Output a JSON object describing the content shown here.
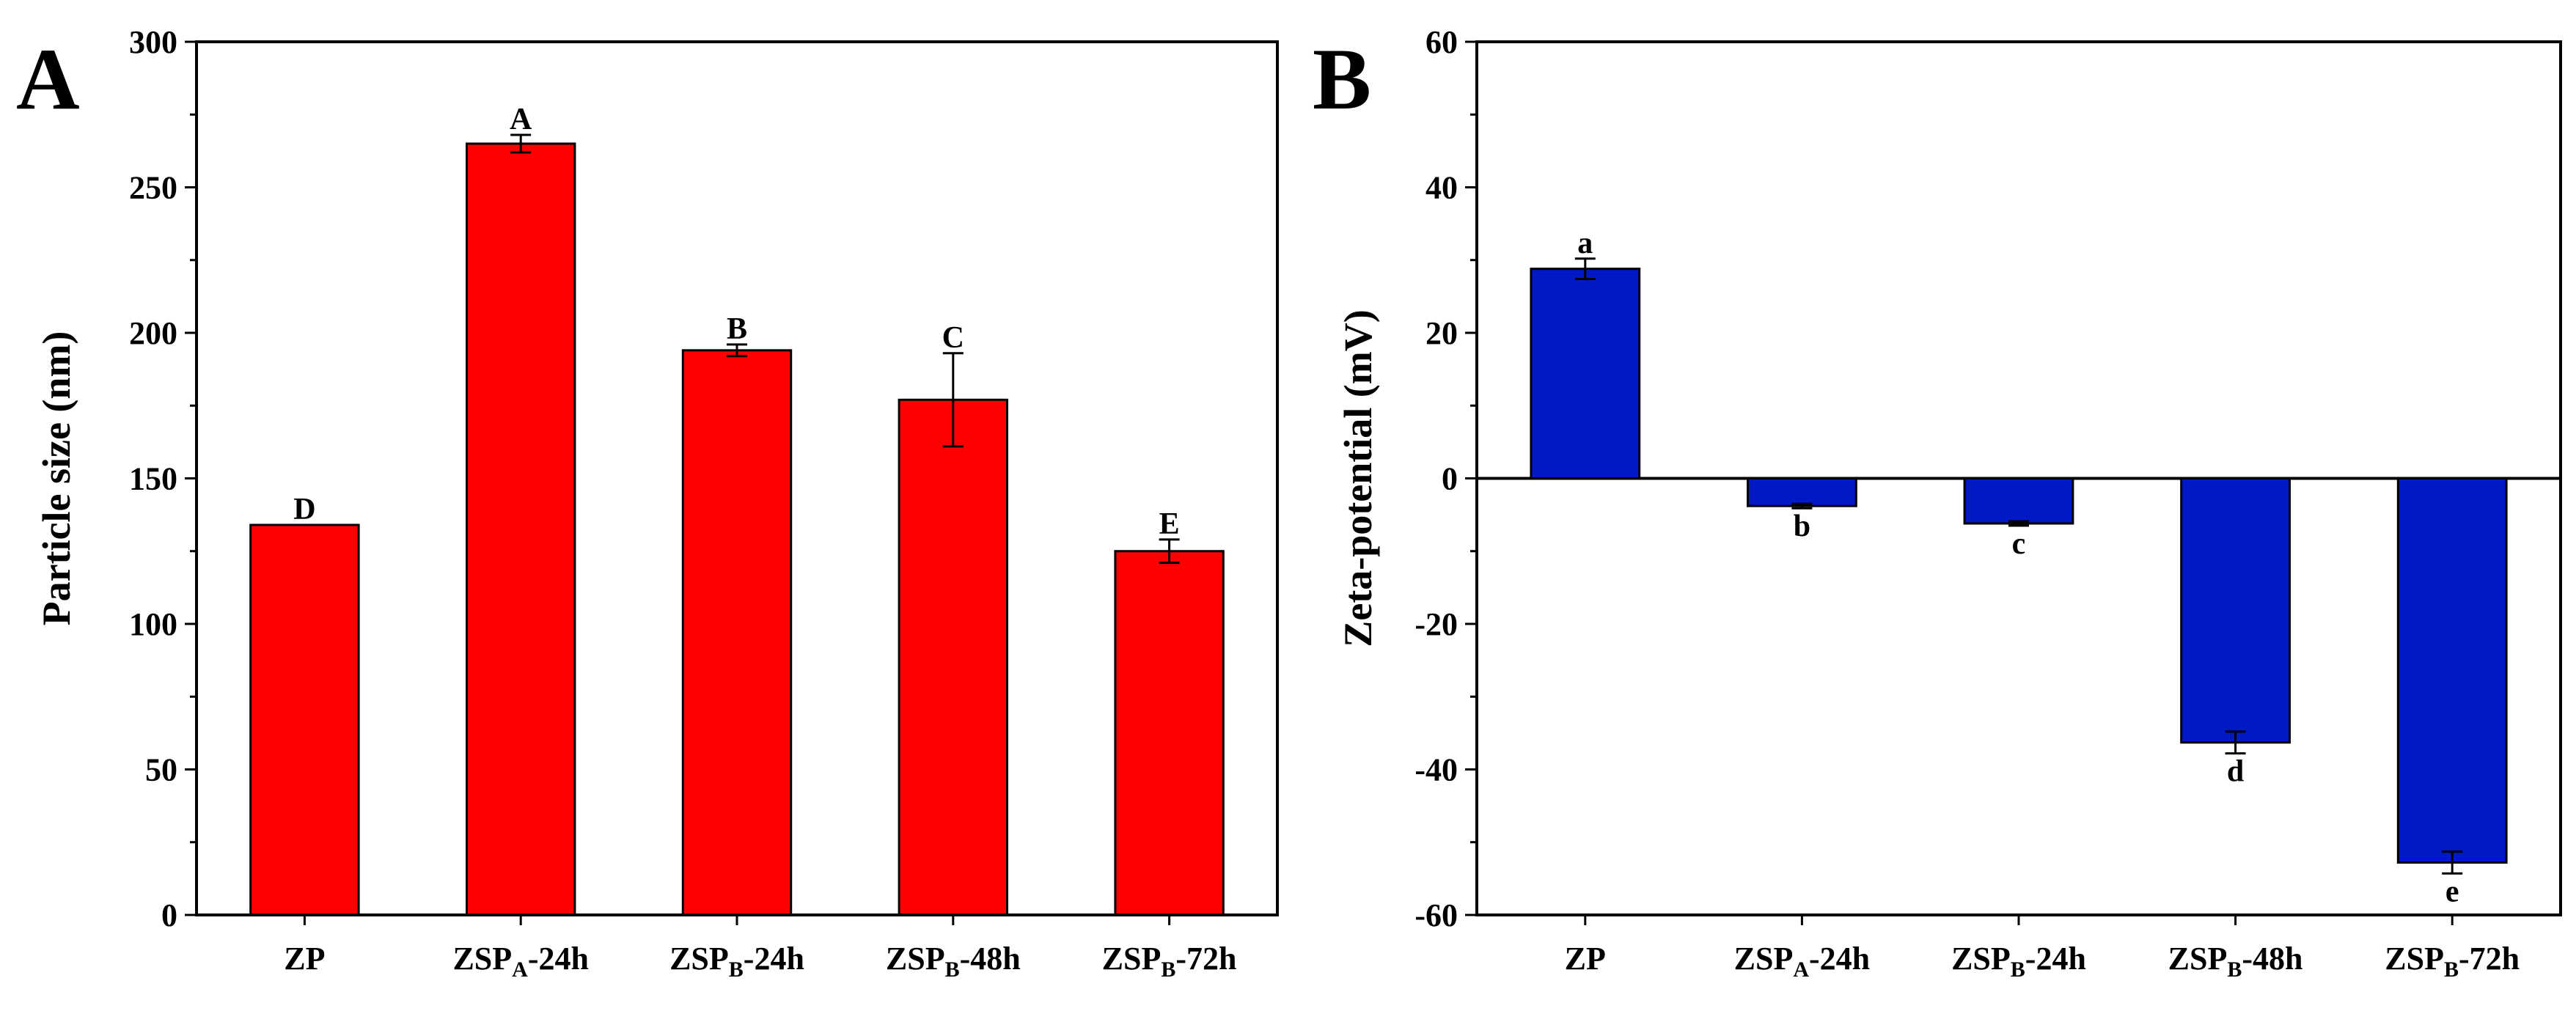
{
  "chart_data": [
    {
      "panel": "A",
      "type": "bar",
      "ylabel": "Particle size (nm)",
      "xlabel": "",
      "ylim": [
        0,
        300
      ],
      "yticks": [
        0,
        50,
        100,
        150,
        200,
        250,
        300
      ],
      "bar_color": "#ff0000",
      "categories": [
        {
          "pre": "ZP",
          "sub": "",
          "post": ""
        },
        {
          "pre": "ZSP",
          "sub": "A",
          "post": "-24h"
        },
        {
          "pre": "ZSP",
          "sub": "B",
          "post": "-24h"
        },
        {
          "pre": "ZSP",
          "sub": "B",
          "post": "-48h"
        },
        {
          "pre": "ZSP",
          "sub": "B",
          "post": "-72h"
        }
      ],
      "values": [
        134,
        265,
        194,
        177,
        125
      ],
      "errors": [
        0,
        3,
        2,
        16,
        4
      ],
      "labels": [
        "D",
        "A",
        "B",
        "C",
        "E"
      ]
    },
    {
      "panel": "B",
      "type": "bar",
      "ylabel": "Zeta-potential (mV)",
      "xlabel": "",
      "ylim": [
        -60,
        60
      ],
      "yticks": [
        -60,
        -40,
        -20,
        0,
        20,
        40,
        60
      ],
      "bar_color": "#0019c8",
      "categories": [
        {
          "pre": "ZP",
          "sub": "",
          "post": ""
        },
        {
          "pre": "ZSP",
          "sub": "A",
          "post": "-24h"
        },
        {
          "pre": "ZSP",
          "sub": "B",
          "post": "-24h"
        },
        {
          "pre": "ZSP",
          "sub": "B",
          "post": "-48h"
        },
        {
          "pre": "ZSP",
          "sub": "B",
          "post": "-72h"
        }
      ],
      "values": [
        28.8,
        -3.8,
        -6.2,
        -36.3,
        -52.8
      ],
      "errors": [
        1.4,
        0.3,
        0.3,
        1.5,
        1.5
      ],
      "labels": [
        "a",
        "b",
        "c",
        "d",
        "e"
      ]
    }
  ]
}
